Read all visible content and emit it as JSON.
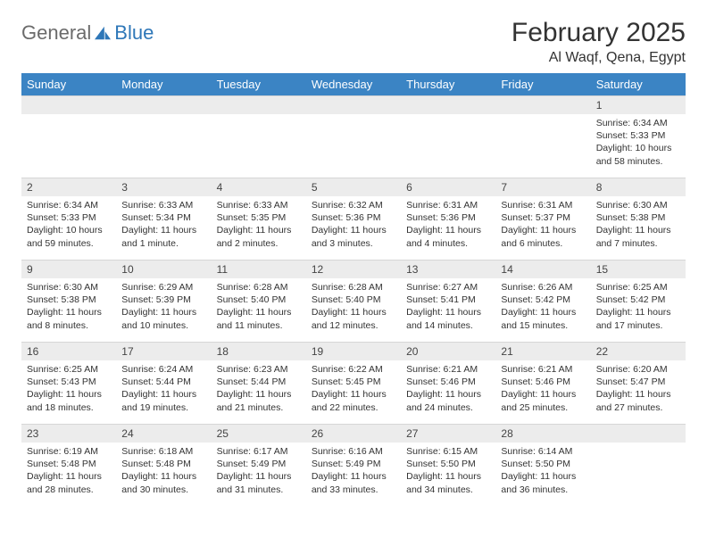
{
  "logo": {
    "word1": "General",
    "word2": "Blue"
  },
  "title": "February 2025",
  "location": "Al Waqf, Qena, Egypt",
  "header_bg": "#3b84c4",
  "daynum_bg": "#ececec",
  "days_of_week": [
    "Sunday",
    "Monday",
    "Tuesday",
    "Wednesday",
    "Thursday",
    "Friday",
    "Saturday"
  ],
  "weeks": [
    [
      {
        "blank": true
      },
      {
        "blank": true
      },
      {
        "blank": true
      },
      {
        "blank": true
      },
      {
        "blank": true
      },
      {
        "blank": true
      },
      {
        "n": "1",
        "sunrise": "Sunrise: 6:34 AM",
        "sunset": "Sunset: 5:33 PM",
        "daylight": "Daylight: 10 hours and 58 minutes."
      }
    ],
    [
      {
        "n": "2",
        "sunrise": "Sunrise: 6:34 AM",
        "sunset": "Sunset: 5:33 PM",
        "daylight": "Daylight: 10 hours and 59 minutes."
      },
      {
        "n": "3",
        "sunrise": "Sunrise: 6:33 AM",
        "sunset": "Sunset: 5:34 PM",
        "daylight": "Daylight: 11 hours and 1 minute."
      },
      {
        "n": "4",
        "sunrise": "Sunrise: 6:33 AM",
        "sunset": "Sunset: 5:35 PM",
        "daylight": "Daylight: 11 hours and 2 minutes."
      },
      {
        "n": "5",
        "sunrise": "Sunrise: 6:32 AM",
        "sunset": "Sunset: 5:36 PM",
        "daylight": "Daylight: 11 hours and 3 minutes."
      },
      {
        "n": "6",
        "sunrise": "Sunrise: 6:31 AM",
        "sunset": "Sunset: 5:36 PM",
        "daylight": "Daylight: 11 hours and 4 minutes."
      },
      {
        "n": "7",
        "sunrise": "Sunrise: 6:31 AM",
        "sunset": "Sunset: 5:37 PM",
        "daylight": "Daylight: 11 hours and 6 minutes."
      },
      {
        "n": "8",
        "sunrise": "Sunrise: 6:30 AM",
        "sunset": "Sunset: 5:38 PM",
        "daylight": "Daylight: 11 hours and 7 minutes."
      }
    ],
    [
      {
        "n": "9",
        "sunrise": "Sunrise: 6:30 AM",
        "sunset": "Sunset: 5:38 PM",
        "daylight": "Daylight: 11 hours and 8 minutes."
      },
      {
        "n": "10",
        "sunrise": "Sunrise: 6:29 AM",
        "sunset": "Sunset: 5:39 PM",
        "daylight": "Daylight: 11 hours and 10 minutes."
      },
      {
        "n": "11",
        "sunrise": "Sunrise: 6:28 AM",
        "sunset": "Sunset: 5:40 PM",
        "daylight": "Daylight: 11 hours and 11 minutes."
      },
      {
        "n": "12",
        "sunrise": "Sunrise: 6:28 AM",
        "sunset": "Sunset: 5:40 PM",
        "daylight": "Daylight: 11 hours and 12 minutes."
      },
      {
        "n": "13",
        "sunrise": "Sunrise: 6:27 AM",
        "sunset": "Sunset: 5:41 PM",
        "daylight": "Daylight: 11 hours and 14 minutes."
      },
      {
        "n": "14",
        "sunrise": "Sunrise: 6:26 AM",
        "sunset": "Sunset: 5:42 PM",
        "daylight": "Daylight: 11 hours and 15 minutes."
      },
      {
        "n": "15",
        "sunrise": "Sunrise: 6:25 AM",
        "sunset": "Sunset: 5:42 PM",
        "daylight": "Daylight: 11 hours and 17 minutes."
      }
    ],
    [
      {
        "n": "16",
        "sunrise": "Sunrise: 6:25 AM",
        "sunset": "Sunset: 5:43 PM",
        "daylight": "Daylight: 11 hours and 18 minutes."
      },
      {
        "n": "17",
        "sunrise": "Sunrise: 6:24 AM",
        "sunset": "Sunset: 5:44 PM",
        "daylight": "Daylight: 11 hours and 19 minutes."
      },
      {
        "n": "18",
        "sunrise": "Sunrise: 6:23 AM",
        "sunset": "Sunset: 5:44 PM",
        "daylight": "Daylight: 11 hours and 21 minutes."
      },
      {
        "n": "19",
        "sunrise": "Sunrise: 6:22 AM",
        "sunset": "Sunset: 5:45 PM",
        "daylight": "Daylight: 11 hours and 22 minutes."
      },
      {
        "n": "20",
        "sunrise": "Sunrise: 6:21 AM",
        "sunset": "Sunset: 5:46 PM",
        "daylight": "Daylight: 11 hours and 24 minutes."
      },
      {
        "n": "21",
        "sunrise": "Sunrise: 6:21 AM",
        "sunset": "Sunset: 5:46 PM",
        "daylight": "Daylight: 11 hours and 25 minutes."
      },
      {
        "n": "22",
        "sunrise": "Sunrise: 6:20 AM",
        "sunset": "Sunset: 5:47 PM",
        "daylight": "Daylight: 11 hours and 27 minutes."
      }
    ],
    [
      {
        "n": "23",
        "sunrise": "Sunrise: 6:19 AM",
        "sunset": "Sunset: 5:48 PM",
        "daylight": "Daylight: 11 hours and 28 minutes."
      },
      {
        "n": "24",
        "sunrise": "Sunrise: 6:18 AM",
        "sunset": "Sunset: 5:48 PM",
        "daylight": "Daylight: 11 hours and 30 minutes."
      },
      {
        "n": "25",
        "sunrise": "Sunrise: 6:17 AM",
        "sunset": "Sunset: 5:49 PM",
        "daylight": "Daylight: 11 hours and 31 minutes."
      },
      {
        "n": "26",
        "sunrise": "Sunrise: 6:16 AM",
        "sunset": "Sunset: 5:49 PM",
        "daylight": "Daylight: 11 hours and 33 minutes."
      },
      {
        "n": "27",
        "sunrise": "Sunrise: 6:15 AM",
        "sunset": "Sunset: 5:50 PM",
        "daylight": "Daylight: 11 hours and 34 minutes."
      },
      {
        "n": "28",
        "sunrise": "Sunrise: 6:14 AM",
        "sunset": "Sunset: 5:50 PM",
        "daylight": "Daylight: 11 hours and 36 minutes."
      },
      {
        "blank": true
      }
    ]
  ]
}
